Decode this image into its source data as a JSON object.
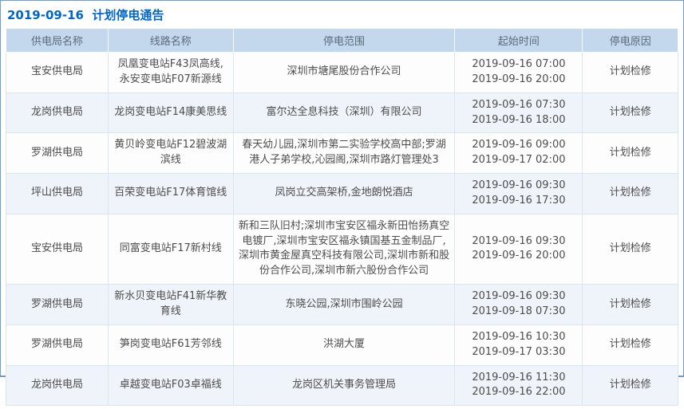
{
  "page": {
    "title": "2019-09-16  计划停电通告"
  },
  "table": {
    "columns": [
      "供电局名称",
      "线路名称",
      "停电范围",
      "起始时间",
      "停电原因"
    ],
    "rows": [
      {
        "bureau": "宝安供电局",
        "line": "凤凰变电站F43凤高线,永安变电站F07新源线",
        "scope": "深圳市塘尾股份合作公司",
        "start": "2019-09-16 07:00",
        "end": "2019-09-16 20:00",
        "reason": "计划检修"
      },
      {
        "bureau": "龙岗供电局",
        "line": "龙岗变电站F14康美思线",
        "scope": "富尔达全息科技（深圳）有限公司",
        "start": "2019-09-16 07:30",
        "end": "2019-09-16 18:00",
        "reason": "计划检修"
      },
      {
        "bureau": "罗湖供电局",
        "line": "黄贝岭变电站F12碧波湖滨线",
        "scope": "春天幼儿园,深圳市第二实验学校高中部;罗湖港人子弟学校,沁园阁,深圳市路灯管理处3",
        "start": "2019-09-16 09:00",
        "end": "2019-09-17 02:00",
        "reason": "计划检修"
      },
      {
        "bureau": "坪山供电局",
        "line": "百荣变电站F17体育馆线",
        "scope": "凤岗立交高架桥,金地朗悦酒店",
        "start": "2019-09-16 09:30",
        "end": "2019-09-16 17:30",
        "reason": "计划检修"
      },
      {
        "bureau": "宝安供电局",
        "line": "同富变电站F17新村线",
        "scope": "新和三队旧村;深圳市宝安区福永新田怡扬真空电镀厂,深圳市宝安区福永镇国基五金制品厂,深圳市黄金屋真空科技有限公司,深圳市新和股份合作公司,深圳市新六股份合作公司",
        "start": "2019-09-16 09:30",
        "end": "2019-09-16 20:00",
        "reason": "计划检修"
      },
      {
        "bureau": "罗湖供电局",
        "line": "新水贝变电站F41新华教育线",
        "scope": "东晓公园,深圳市围岭公园",
        "start": "2019-09-16 09:30",
        "end": "2019-09-18 07:30",
        "reason": "计划检修"
      },
      {
        "bureau": "罗湖供电局",
        "line": "笋岗变电站F61芳邻线",
        "scope": "洪湖大厦",
        "start": "2019-09-16 10:30",
        "end": "2019-09-17 03:30",
        "reason": "计划检修"
      },
      {
        "bureau": "龙岗供电局",
        "line": "卓越变电站F03卓福线",
        "scope": "龙岗区机关事务管理局",
        "start": "2019-09-16 11:30",
        "end": "2019-09-16 22:00",
        "reason": "计划检修"
      }
    ]
  },
  "colors": {
    "accent": "#0066cc",
    "header_bg": "#c3d8ec",
    "header_text": "#5b6b7c",
    "row_alt_bg": "#eef4fa",
    "row_bg": "#fdfdfe",
    "cell_border": "#d9e5f1",
    "outer_border": "#6e9bd0",
    "cell_text": "#4d4d4d"
  }
}
